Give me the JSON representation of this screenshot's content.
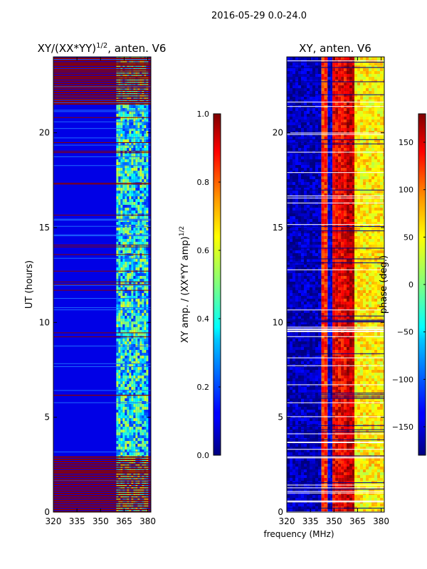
{
  "figure_title": "2016-05-29 0.0-24.0",
  "shared_xlabel": "frequency (MHz)",
  "colors": {
    "hot": "#8b0000",
    "cold": "#00008b"
  },
  "chart_data": [
    {
      "type": "heatmap",
      "name": "amplitude",
      "title_main": "XY/(XX*YY)",
      "title_sup": "1/2",
      "title_rest": ", anten. V6",
      "xlabel": "",
      "ylabel": "UT (hours)",
      "x_range": [
        320,
        382
      ],
      "y_range": [
        0,
        24
      ],
      "x_ticks": [
        320,
        335,
        350,
        365,
        380
      ],
      "y_ticks": [
        0,
        5,
        10,
        15,
        20
      ],
      "colorbar": {
        "label_main": "XY amp. / (XX*YY amp)",
        "label_sup": "1/2",
        "range": [
          0.0,
          1.0
        ],
        "ticks": [
          0.0,
          0.2,
          0.4,
          0.6,
          0.8,
          1.0
        ],
        "tick_labels": [
          "0.0",
          "0.2",
          "0.4",
          "0.6",
          "0.8",
          "1.0"
        ],
        "colormap": "jet"
      },
      "description_values": {
        "background_level": 0.1,
        "high_band_mhz": [
          360,
          380
        ],
        "high_band_level": 0.4,
        "saturated_time_ranges_hours": [
          [
            0,
            2.9
          ],
          [
            21.5,
            24
          ]
        ]
      }
    },
    {
      "type": "heatmap",
      "name": "phase",
      "title_main": "XY, anten. V6",
      "xlabel": "",
      "ylabel": "",
      "x_range": [
        320,
        382
      ],
      "y_range": [
        0,
        24
      ],
      "x_ticks": [
        320,
        335,
        350,
        365,
        380
      ],
      "y_ticks": [
        0,
        5,
        10,
        15,
        20
      ],
      "colorbar": {
        "label_main": "phase (deg.)",
        "range": [
          -180,
          180
        ],
        "ticks": [
          -150,
          -100,
          -50,
          0,
          50,
          100,
          150
        ],
        "tick_labels": [
          "−150",
          "−100",
          "−50",
          "0",
          "50",
          "100",
          "150"
        ],
        "colormap": "jet"
      },
      "description_values": {
        "bands_mhz": [
          [
            320,
            342,
            -160
          ],
          [
            342,
            346,
            120
          ],
          [
            346,
            349,
            -150
          ],
          [
            349,
            358,
            140
          ],
          [
            358,
            363,
            160
          ],
          [
            363,
            382,
            50
          ]
        ]
      }
    }
  ]
}
